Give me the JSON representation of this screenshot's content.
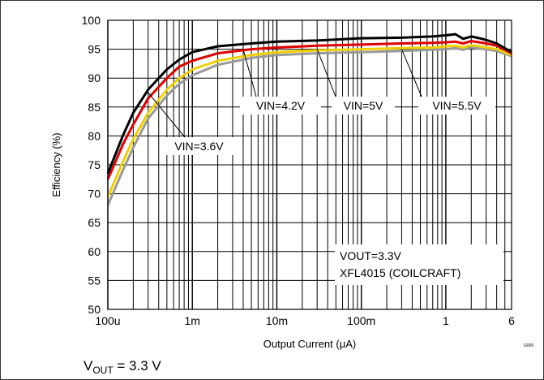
{
  "chart_data": {
    "type": "line",
    "xscale": "log",
    "xlim": [
      0.0001,
      6
    ],
    "ylim": [
      50,
      100
    ],
    "xlabel": "Output Current (μA)",
    "ylabel": "Efficiency (%)",
    "grid": true,
    "xticks": [
      {
        "value": 0.0001,
        "label": "100u"
      },
      {
        "value": 0.001,
        "label": "1m"
      },
      {
        "value": 0.01,
        "label": "10m"
      },
      {
        "value": 0.1,
        "label": "100m"
      },
      {
        "value": 1,
        "label": "1"
      },
      {
        "value": 6,
        "label": "6"
      }
    ],
    "yticks": [
      50,
      55,
      60,
      65,
      70,
      75,
      80,
      85,
      90,
      95,
      100
    ],
    "series": [
      {
        "name": "VIN=3.6V",
        "color": "#000000",
        "x": [
          0.0001,
          0.00015,
          0.0002,
          0.0003,
          0.0005,
          0.0007,
          0.001,
          0.002,
          0.005,
          0.01,
          0.03,
          0.1,
          0.3,
          0.7,
          1,
          1.3,
          1.6,
          2,
          2.5,
          3,
          4,
          6
        ],
        "y": [
          73.5,
          80,
          84,
          88,
          91.5,
          93.2,
          94.5,
          95.5,
          96,
          96.3,
          96.5,
          96.9,
          97,
          97.2,
          97.4,
          97.6,
          96.8,
          97.2,
          96.9,
          96.6,
          96,
          94.5
        ]
      },
      {
        "name": "VIN=4.2V",
        "color": "#e00000",
        "x": [
          0.0001,
          0.00015,
          0.0002,
          0.0003,
          0.0005,
          0.0007,
          0.001,
          0.002,
          0.005,
          0.01,
          0.03,
          0.1,
          0.3,
          0.7,
          1,
          1.3,
          1.6,
          2,
          2.5,
          3,
          4,
          6
        ],
        "y": [
          72.5,
          78.5,
          82,
          86.5,
          90,
          92,
          93,
          94.3,
          95,
          95.3,
          95.6,
          95.8,
          96,
          96.1,
          96.2,
          96.3,
          96,
          96.4,
          96.2,
          96,
          95.6,
          94.3
        ]
      },
      {
        "name": "VIN=5V",
        "color": "#f0d000",
        "x": [
          0.0001,
          0.00015,
          0.0002,
          0.0003,
          0.0005,
          0.0007,
          0.001,
          0.002,
          0.005,
          0.01,
          0.03,
          0.1,
          0.3,
          0.7,
          1,
          1.3,
          1.6,
          2,
          2.5,
          3,
          4,
          6
        ],
        "y": [
          69.5,
          75.5,
          79.5,
          84,
          88,
          90,
          91.5,
          93,
          94,
          94.5,
          94.8,
          95,
          95.2,
          95.3,
          95.5,
          95.6,
          95.3,
          95.7,
          95.5,
          95.3,
          95,
          94
        ]
      },
      {
        "name": "VIN=5.5V",
        "color": "#999999",
        "x": [
          0.0001,
          0.00015,
          0.0002,
          0.0003,
          0.0005,
          0.0007,
          0.001,
          0.002,
          0.005,
          0.01,
          0.03,
          0.1,
          0.3,
          0.7,
          1,
          1.3,
          1.6,
          2,
          2.5,
          3,
          4,
          6
        ],
        "y": [
          68,
          74,
          78,
          83,
          87,
          89,
          90.5,
          92.3,
          93.5,
          94,
          94.3,
          94.5,
          94.7,
          94.9,
          95,
          95.2,
          94.9,
          95.3,
          95.1,
          95,
          94.7,
          93.8
        ]
      }
    ],
    "annotations": [
      {
        "text": "VIN=4.2V",
        "pointer_x": 0.004,
        "pointer_y": 95
      },
      {
        "text": "VIN=5V",
        "pointer_x": 0.03,
        "pointer_y": 95
      },
      {
        "text": "VIN=5.5V",
        "pointer_x": 0.3,
        "pointer_y": 95
      },
      {
        "text": "VIN=3.6V",
        "pointer_x": 0.0003,
        "pointer_y": 87.5
      }
    ],
    "note_lines": [
      "VOUT=3.3V",
      "XFL4015 (COILCRAFT)"
    ],
    "corner_id": "G000"
  },
  "caption": {
    "main": "V",
    "sub": "OUT",
    "rest": " = 3.3 V"
  }
}
